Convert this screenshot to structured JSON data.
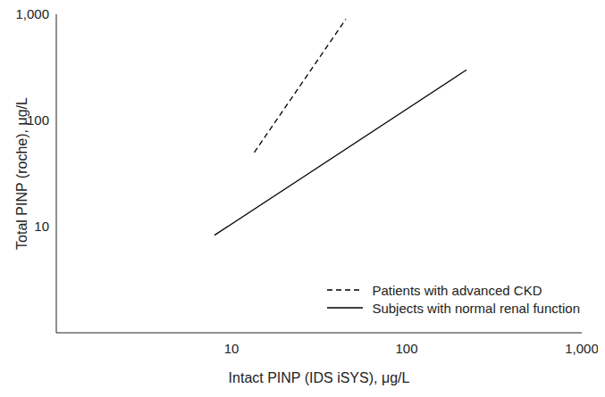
{
  "chart_data": {
    "type": "line",
    "x_label": "Intact PINP (IDS iSYS), μg/L",
    "y_label": "Total PINP (roche), μg/L",
    "log": true,
    "grid": false,
    "legend": "lower right",
    "xlim": [
      1,
      1000
    ],
    "ylim": [
      1,
      1000
    ],
    "xticks": [
      10,
      100,
      {
        "value": 1000,
        "label": "1,000"
      }
    ],
    "yticks": [
      10,
      100,
      {
        "value": 1000,
        "label": "1,000"
      }
    ],
    "series": [
      {
        "name": "Patients with advanced CKD",
        "color": "#000000",
        "line_style": "dashed",
        "x": [
          13.5,
          45
        ],
        "values": [
          50,
          900
        ]
      },
      {
        "name": "Subjects with normal renal function",
        "color": "#000000",
        "line_style": "solid",
        "x": [
          8,
          220
        ],
        "values": [
          8.3,
          300
        ]
      }
    ]
  }
}
